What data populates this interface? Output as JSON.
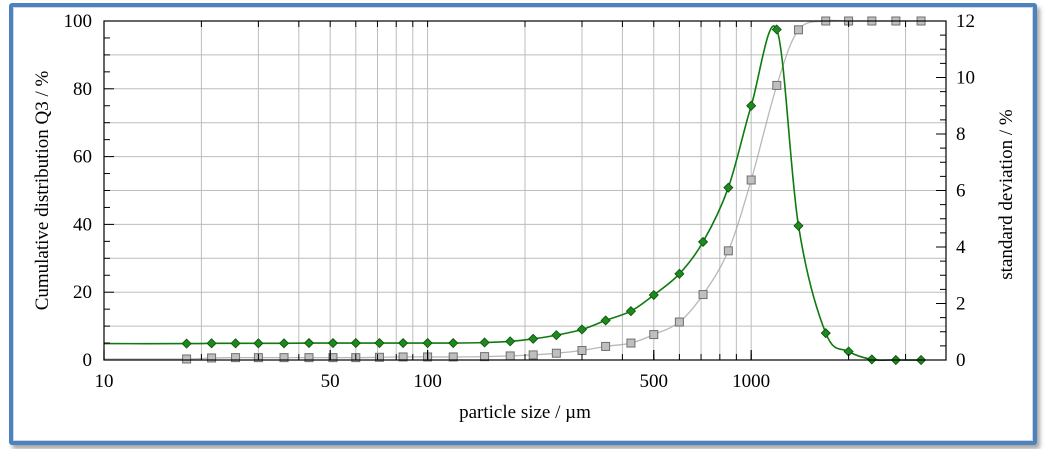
{
  "chart_data": {
    "type": "line",
    "xlabel": "particle size / µm",
    "ylabel_left": "Cumulative distribution Q3 / %",
    "ylabel_right": "standard deviation / %",
    "x_scale": "log",
    "xlim": [
      10,
      4000
    ],
    "ylim_left": [
      0,
      100
    ],
    "ylim_right": [
      0,
      12
    ],
    "x_ticks": [
      10,
      50,
      100,
      500,
      1000
    ],
    "x_tick_labels": [
      "10",
      "50",
      "100",
      "500",
      "1000"
    ],
    "y_left_ticks": [
      0,
      20,
      40,
      60,
      80,
      100
    ],
    "y_left_tick_labels": [
      "0",
      "20",
      "40",
      "60",
      "80",
      "100"
    ],
    "y_right_ticks": [
      0,
      2,
      4,
      6,
      8,
      10,
      12
    ],
    "y_right_tick_labels": [
      "0",
      "2",
      "4",
      "6",
      "8",
      "10",
      "12"
    ],
    "grid": true,
    "series": [
      {
        "axis": "left",
        "marker": "square",
        "color": "#a6a6a6",
        "marker_fill": "#bfbfbf",
        "x": [
          18,
          21.5,
          25.5,
          30,
          36,
          43,
          51,
          60,
          71,
          84,
          100,
          120,
          150,
          180,
          212,
          250,
          300,
          355,
          425,
          500,
          600,
          710,
          850,
          1000,
          1200,
          1400,
          1700,
          2000,
          2360,
          2800,
          3350
        ],
        "values": [
          0.3,
          0.6,
          0.7,
          0.7,
          0.7,
          0.7,
          0.7,
          0.7,
          0.8,
          0.9,
          0.9,
          0.9,
          1.0,
          1.2,
          1.5,
          2.0,
          2.8,
          4.0,
          5.0,
          7.5,
          11.2,
          19.3,
          32.2,
          53.1,
          81.0,
          97.4,
          100,
          100,
          100,
          100,
          100
        ]
      },
      {
        "axis": "right",
        "marker": "diamond",
        "color": "#0f7a0f",
        "marker_fill": "#1e8a1e",
        "x": [
          18,
          21.5,
          25.5,
          30,
          36,
          43,
          51,
          60,
          71,
          84,
          100,
          120,
          150,
          180,
          212,
          250,
          300,
          355,
          425,
          500,
          600,
          710,
          850,
          1000,
          1200,
          1400,
          1700,
          2000,
          2360,
          2800,
          3350
        ],
        "values": [
          0.58,
          0.59,
          0.59,
          0.59,
          0.59,
          0.6,
          0.6,
          0.6,
          0.6,
          0.6,
          0.6,
          0.6,
          0.62,
          0.66,
          0.75,
          0.88,
          1.08,
          1.4,
          1.73,
          2.3,
          3.05,
          4.18,
          6.1,
          9.0,
          11.7,
          4.75,
          0.95,
          0.3,
          0.02,
          0.0,
          0.0
        ]
      }
    ]
  }
}
